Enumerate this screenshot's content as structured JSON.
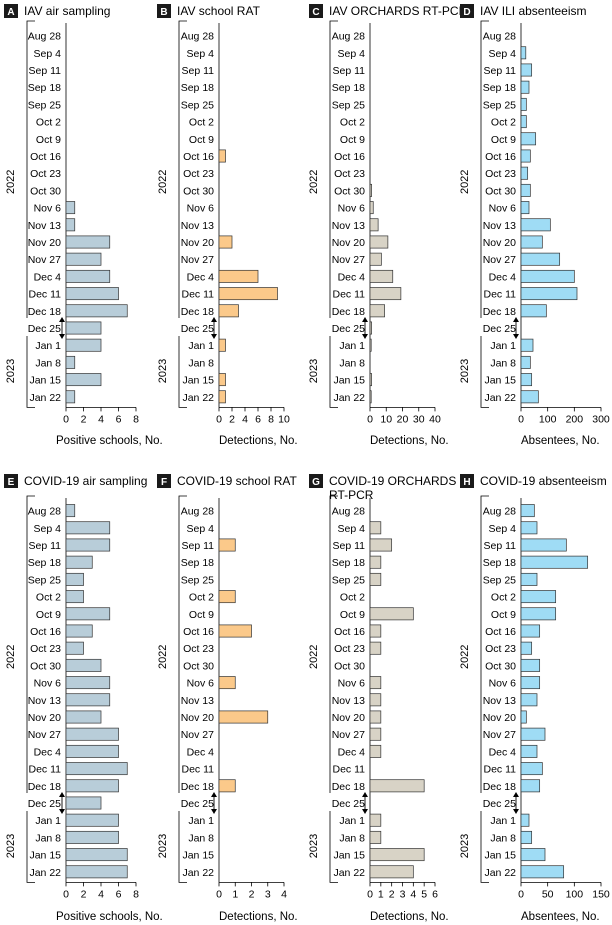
{
  "years": [
    "2022",
    "2023"
  ],
  "weeks": [
    "Aug 28",
    "Sep 4",
    "Sep 11",
    "Sep 18",
    "Sep 25",
    "Oct 2",
    "Oct 9",
    "Oct 16",
    "Oct 23",
    "Oct 30",
    "Nov 6",
    "Nov 13",
    "Nov 20",
    "Nov 27",
    "Dec 4",
    "Dec 11",
    "Dec 18",
    "Dec 25",
    "Jan 1",
    "Jan 8",
    "Jan 15",
    "Jan 22"
  ],
  "colors": {
    "air": "#b8cdd9",
    "rat": "#fbc98a",
    "pcr": "#d8d3c6",
    "absent": "#9fdcf5",
    "stroke": "#333333"
  },
  "chart_data": [
    {
      "letter": "A",
      "title": "IAV air sampling",
      "type": "bar",
      "orientation": "horizontal",
      "xlabel": "Positive schools, No.",
      "xticks": [
        0,
        2,
        4,
        6,
        8
      ],
      "xlim": [
        0,
        8
      ],
      "color_key": "air",
      "categories_ref": "weeks",
      "values": [
        null,
        null,
        null,
        null,
        null,
        null,
        null,
        null,
        null,
        null,
        1,
        1,
        5,
        4,
        5,
        6,
        7,
        4,
        4,
        1,
        4,
        1
      ]
    },
    {
      "letter": "B",
      "title": "IAV school RAT",
      "type": "bar",
      "orientation": "horizontal",
      "xlabel": "Detections, No.",
      "xticks": [
        0,
        2,
        4,
        6,
        8,
        10
      ],
      "xlim": [
        0,
        10
      ],
      "color_key": "rat",
      "categories_ref": "weeks",
      "values": [
        null,
        null,
        null,
        null,
        null,
        null,
        null,
        1,
        null,
        null,
        null,
        null,
        2,
        null,
        6,
        9,
        3,
        null,
        1,
        null,
        1,
        1
      ]
    },
    {
      "letter": "C",
      "title": "IAV ORCHARDS RT-PCR",
      "type": "bar",
      "orientation": "horizontal",
      "xlabel": "Detections, No.",
      "xticks": [
        0,
        10,
        20,
        30,
        40
      ],
      "xlim": [
        0,
        40
      ],
      "color_key": "pcr",
      "categories_ref": "weeks",
      "values": [
        null,
        null,
        null,
        null,
        null,
        null,
        null,
        null,
        null,
        1,
        2,
        5,
        11,
        7,
        14,
        19,
        9,
        1,
        0.5,
        null,
        1,
        0.5
      ]
    },
    {
      "letter": "D",
      "title": "IAV ILI absenteeism",
      "type": "bar",
      "orientation": "horizontal",
      "xlabel": "Absentees, No.",
      "xticks": [
        0,
        100,
        200,
        300
      ],
      "xlim": [
        0,
        300
      ],
      "color_key": "absent",
      "categories_ref": "weeks",
      "values": [
        null,
        18,
        40,
        30,
        20,
        20,
        55,
        35,
        25,
        35,
        30,
        110,
        80,
        145,
        200,
        210,
        95,
        null,
        45,
        35,
        40,
        65
      ]
    },
    {
      "letter": "E",
      "title": "COVID-19 air sampling",
      "type": "bar",
      "orientation": "horizontal",
      "xlabel": "Positive schools, No.",
      "xticks": [
        0,
        2,
        4,
        6,
        8
      ],
      "xlim": [
        0,
        8
      ],
      "color_key": "air",
      "categories_ref": "weeks",
      "values": [
        1,
        5,
        5,
        3,
        2,
        2,
        5,
        3,
        2,
        4,
        5,
        5,
        4,
        6,
        6,
        7,
        6,
        4,
        6,
        6,
        7,
        7
      ]
    },
    {
      "letter": "F",
      "title": "COVID-19 school RAT",
      "type": "bar",
      "orientation": "horizontal",
      "xlabel": "Detections, No.",
      "xticks": [
        0,
        1,
        2,
        3,
        4
      ],
      "xlim": [
        0,
        4
      ],
      "color_key": "rat",
      "categories_ref": "weeks",
      "values": [
        null,
        null,
        1,
        null,
        null,
        1,
        null,
        2,
        null,
        null,
        1,
        null,
        3,
        null,
        null,
        null,
        1,
        null,
        null,
        null,
        null,
        null
      ]
    },
    {
      "letter": "G",
      "title": "COVID-19 ORCHARDS",
      "title2": "RT-PCR",
      "type": "bar",
      "orientation": "horizontal",
      "xlabel": "Detections, No.",
      "xticks": [
        0,
        1,
        2,
        3,
        4,
        5,
        6
      ],
      "xlim": [
        0,
        6
      ],
      "color_key": "pcr",
      "categories_ref": "weeks",
      "values": [
        null,
        1,
        2,
        1,
        1,
        null,
        4,
        1,
        1,
        null,
        1,
        1,
        1,
        1,
        1,
        null,
        5,
        null,
        1,
        1,
        5,
        4
      ]
    },
    {
      "letter": "H",
      "title": "COVID-19 absenteeism",
      "type": "bar",
      "orientation": "horizontal",
      "xlabel": "Absentees, No.",
      "xticks": [
        0,
        50,
        100,
        150
      ],
      "xlim": [
        0,
        150
      ],
      "color_key": "absent",
      "categories_ref": "weeks",
      "values": [
        25,
        30,
        85,
        125,
        30,
        65,
        65,
        35,
        20,
        35,
        35,
        30,
        10,
        45,
        30,
        40,
        35,
        null,
        15,
        20,
        45,
        80
      ]
    }
  ]
}
